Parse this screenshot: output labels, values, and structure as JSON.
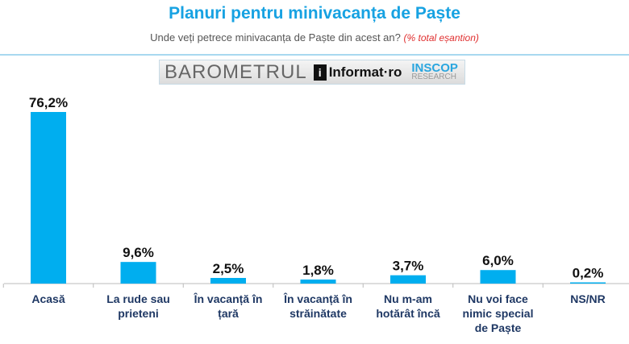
{
  "chart_data": {
    "type": "bar",
    "title": "Planuri pentru minivacanța de Paște",
    "subtitle": "Unde veți petrece minivacanța de Paște din acest an?",
    "subtitle_note": "(% total eșantion)",
    "categories": [
      "Acasă",
      "La rude sau prieteni",
      "În vacanță în țară",
      "În vacanță în străinătate",
      "Nu m-am hotărât încă",
      "Nu voi face nimic special de Paște",
      "NS/NR"
    ],
    "values": [
      76.2,
      9.6,
      2.5,
      1.8,
      3.7,
      6.0,
      0.2
    ],
    "value_labels": [
      "76,2%",
      "9,6%",
      "2,5%",
      "1,8%",
      "3,7%",
      "6,0%",
      "0,2%"
    ],
    "ylim": [
      0,
      80
    ],
    "bar_color": "#00aeef",
    "grid": false
  },
  "logo": {
    "barometru": "BAROMETRUL",
    "informat": "Informat·ro",
    "inscop": "INSCOP",
    "research": "RESEARCH"
  }
}
